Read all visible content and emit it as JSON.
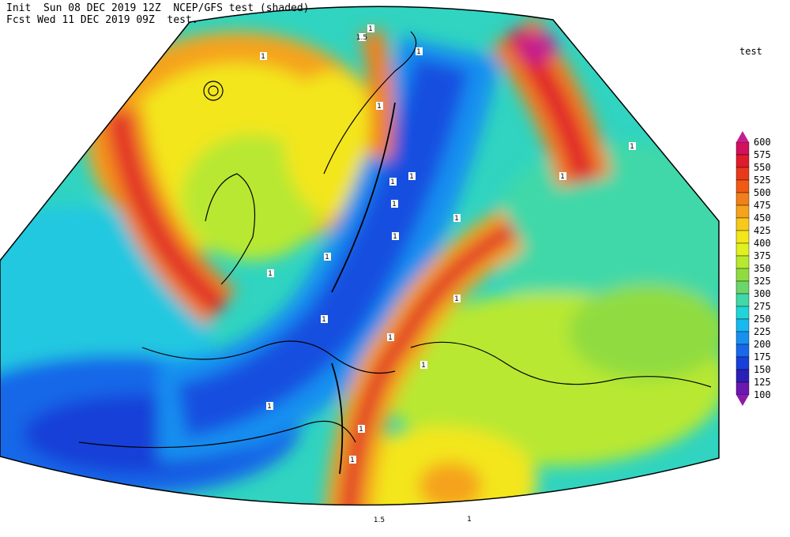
{
  "header": {
    "line1": "Init  Sun 08 DEC 2019 12Z  NCEP/GFS test (shaded)",
    "line2": "Fcst Wed 11 DEC 2019 09Z  test."
  },
  "legend": {
    "title": "test",
    "levels": [
      600,
      575,
      550,
      525,
      500,
      475,
      450,
      425,
      400,
      375,
      350,
      325,
      300,
      275,
      250,
      225,
      200,
      175,
      150,
      125,
      100
    ],
    "colors": [
      "#c41f8f",
      "#d2115c",
      "#e01b2b",
      "#e83a1a",
      "#f05a14",
      "#f2801a",
      "#f5a31c",
      "#f8c81c",
      "#f3e61a",
      "#e0f020",
      "#b8e830",
      "#90dc40",
      "#6cd66a",
      "#40d8a8",
      "#20d4d8",
      "#18b8f0",
      "#1890f0",
      "#1868e8",
      "#1840d8",
      "#2a20b8",
      "#6a18b0",
      "#8c1aa8"
    ]
  },
  "contour_labels": [
    "1.5",
    "1",
    "1",
    "1",
    "1",
    "1",
    "1",
    "1",
    "1",
    "1",
    "1",
    "1",
    "1",
    "1",
    "1",
    "1",
    "1",
    "1",
    "1",
    "1",
    "1",
    "1.5",
    "1"
  ]
}
